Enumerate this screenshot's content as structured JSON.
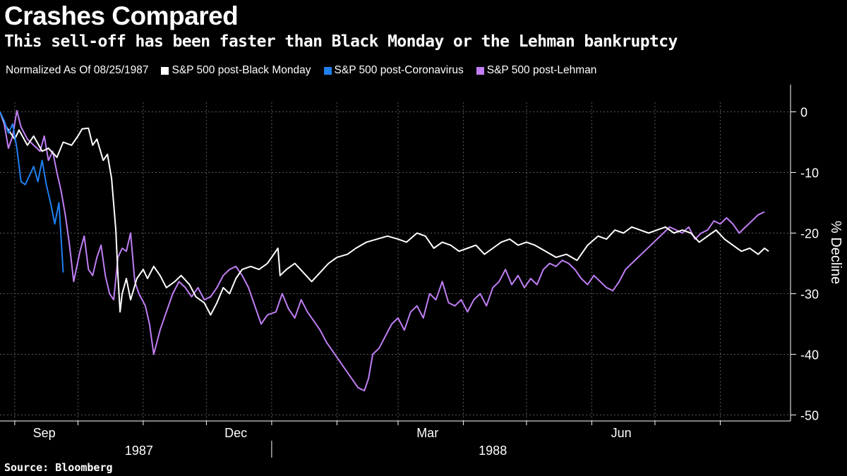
{
  "title": "Crashes Compared",
  "subtitle": "This sell-off has been faster than Black Monday or the Lehman bankruptcy",
  "legend": {
    "note": "Normalized As Of 08/25/1987",
    "items": [
      {
        "label": "S&P 500 post-Black Monday",
        "color": "#ffffff"
      },
      {
        "label": "S&P 500 post-Coronavirus",
        "color": "#1f7ff0"
      },
      {
        "label": "S&P 500 post-Lehman",
        "color": "#c07ef4"
      }
    ]
  },
  "source": "Source: Bloomberg",
  "chart_data": {
    "type": "line",
    "ylabel": "% Decline",
    "ylim": [
      -51,
      1
    ],
    "y_ticks": [
      0,
      -10,
      -20,
      -30,
      -40,
      -50
    ],
    "x_range": [
      "1987-08-25",
      "1988-08-27"
    ],
    "x_month_labels": [
      {
        "label": "Sep",
        "date": "1987-09-15"
      },
      {
        "label": "Dec",
        "date": "1987-12-15"
      },
      {
        "label": "Mar",
        "date": "1988-03-15"
      },
      {
        "label": "Jun",
        "date": "1988-06-15"
      }
    ],
    "x_year_labels": [
      {
        "label": "1987",
        "date": "1987-10-30"
      },
      {
        "label": "1988",
        "date": "1988-04-15"
      }
    ],
    "year_divider": "1988-01-01",
    "grid": true,
    "legend_position": "top-left",
    "series": [
      {
        "name": "S&P 500 post-Black Monday",
        "color": "#ffffff",
        "points": [
          [
            "1987-08-25",
            0
          ],
          [
            "1987-08-28",
            -2.5
          ],
          [
            "1987-09-01",
            -4.5
          ],
          [
            "1987-09-03",
            -3.0
          ],
          [
            "1987-09-07",
            -5.5
          ],
          [
            "1987-09-10",
            -4.0
          ],
          [
            "1987-09-14",
            -6.5
          ],
          [
            "1987-09-17",
            -6.0
          ],
          [
            "1987-09-21",
            -7.5
          ],
          [
            "1987-09-24",
            -5.0
          ],
          [
            "1987-09-28",
            -5.5
          ],
          [
            "1987-10-01",
            -4.0
          ],
          [
            "1987-10-03",
            -2.8
          ],
          [
            "1987-10-06",
            -2.7
          ],
          [
            "1987-10-08",
            -5.5
          ],
          [
            "1987-10-10",
            -4.5
          ],
          [
            "1987-10-13",
            -8.0
          ],
          [
            "1987-10-15",
            -7.0
          ],
          [
            "1987-10-17",
            -11.0
          ],
          [
            "1987-10-19",
            -19.5
          ],
          [
            "1987-10-20",
            -27.0
          ],
          [
            "1987-10-21",
            -33.0
          ],
          [
            "1987-10-22",
            -30.0
          ],
          [
            "1987-10-24",
            -27.5
          ],
          [
            "1987-10-26",
            -31.0
          ],
          [
            "1987-10-29",
            -27.5
          ],
          [
            "1987-11-01",
            -26.0
          ],
          [
            "1987-11-03",
            -27.5
          ],
          [
            "1987-11-06",
            -25.5
          ],
          [
            "1987-11-09",
            -27.0
          ],
          [
            "1987-11-12",
            -29.0
          ],
          [
            "1987-11-16",
            -28.0
          ],
          [
            "1987-11-19",
            -27.0
          ],
          [
            "1987-11-23",
            -28.5
          ],
          [
            "1987-11-26",
            -30.5
          ],
          [
            "1987-11-30",
            -31.5
          ],
          [
            "1987-12-03",
            -33.5
          ],
          [
            "1987-12-06",
            -31.5
          ],
          [
            "1987-12-09",
            -29.0
          ],
          [
            "1987-12-12",
            -30.0
          ],
          [
            "1987-12-15",
            -27.5
          ],
          [
            "1987-12-18",
            -26.0
          ],
          [
            "1987-12-22",
            -25.5
          ],
          [
            "1987-12-26",
            -26.0
          ],
          [
            "1987-12-30",
            -25.0
          ],
          [
            "1988-01-04",
            -22.5
          ],
          [
            "1988-01-05",
            -27.0
          ],
          [
            "1988-01-08",
            -26.0
          ],
          [
            "1988-01-12",
            -25.0
          ],
          [
            "1988-01-16",
            -26.5
          ],
          [
            "1988-01-20",
            -28.0
          ],
          [
            "1988-01-24",
            -26.5
          ],
          [
            "1988-01-28",
            -25.0
          ],
          [
            "1988-02-01",
            -24.0
          ],
          [
            "1988-02-06",
            -23.5
          ],
          [
            "1988-02-10",
            -22.5
          ],
          [
            "1988-02-15",
            -21.5
          ],
          [
            "1988-02-20",
            -21.0
          ],
          [
            "1988-02-25",
            -20.5
          ],
          [
            "1988-03-01",
            -21.0
          ],
          [
            "1988-03-05",
            -21.5
          ],
          [
            "1988-03-10",
            -20.0
          ],
          [
            "1988-03-14",
            -20.5
          ],
          [
            "1988-03-18",
            -22.5
          ],
          [
            "1988-03-22",
            -21.5
          ],
          [
            "1988-03-26",
            -22.0
          ],
          [
            "1988-03-30",
            -23.0
          ],
          [
            "1988-04-03",
            -22.5
          ],
          [
            "1988-04-07",
            -22.0
          ],
          [
            "1988-04-11",
            -23.5
          ],
          [
            "1988-04-15",
            -22.5
          ],
          [
            "1988-04-19",
            -21.5
          ],
          [
            "1988-04-23",
            -21.0
          ],
          [
            "1988-04-27",
            -22.0
          ],
          [
            "1988-05-01",
            -21.5
          ],
          [
            "1988-05-05",
            -22.0
          ],
          [
            "1988-05-10",
            -23.0
          ],
          [
            "1988-05-15",
            -24.0
          ],
          [
            "1988-05-20",
            -23.5
          ],
          [
            "1988-05-25",
            -24.5
          ],
          [
            "1988-05-30",
            -22.0
          ],
          [
            "1988-06-04",
            -20.5
          ],
          [
            "1988-06-08",
            -21.0
          ],
          [
            "1988-06-12",
            -19.5
          ],
          [
            "1988-06-16",
            -20.0
          ],
          [
            "1988-06-20",
            -19.0
          ],
          [
            "1988-06-24",
            -19.5
          ],
          [
            "1988-06-28",
            -20.0
          ],
          [
            "1988-07-02",
            -19.5
          ],
          [
            "1988-07-06",
            -19.0
          ],
          [
            "1988-07-10",
            -20.0
          ],
          [
            "1988-07-14",
            -19.5
          ],
          [
            "1988-07-18",
            -20.0
          ],
          [
            "1988-07-22",
            -21.5
          ],
          [
            "1988-07-26",
            -20.5
          ],
          [
            "1988-07-30",
            -19.5
          ],
          [
            "1988-08-03",
            -21.0
          ],
          [
            "1988-08-07",
            -22.0
          ],
          [
            "1988-08-11",
            -23.0
          ],
          [
            "1988-08-15",
            -22.5
          ],
          [
            "1988-08-19",
            -23.5
          ],
          [
            "1988-08-22",
            -22.5
          ],
          [
            "1988-08-24",
            -23.0
          ]
        ]
      },
      {
        "name": "S&P 500 post-Coronavirus",
        "color": "#1f7ff0",
        "points": [
          [
            "1987-08-25",
            0
          ],
          [
            "1987-08-27",
            -1.5
          ],
          [
            "1987-08-29",
            -3.5
          ],
          [
            "1987-08-31",
            -2.0
          ],
          [
            "1987-09-02",
            -6.0
          ],
          [
            "1987-09-04",
            -11.5
          ],
          [
            "1987-09-06",
            -12.0
          ],
          [
            "1987-09-08",
            -10.5
          ],
          [
            "1987-09-10",
            -9.0
          ],
          [
            "1987-09-12",
            -11.5
          ],
          [
            "1987-09-14",
            -8.0
          ],
          [
            "1987-09-16",
            -12.0
          ],
          [
            "1987-09-18",
            -15.0
          ],
          [
            "1987-09-20",
            -18.5
          ],
          [
            "1987-09-22",
            -15.0
          ],
          [
            "1987-09-24",
            -26.5
          ]
        ]
      },
      {
        "name": "S&P 500 post-Lehman",
        "color": "#c07ef4",
        "points": [
          [
            "1987-08-25",
            0
          ],
          [
            "1987-08-27",
            -2.0
          ],
          [
            "1987-08-29",
            -6.0
          ],
          [
            "1987-08-31",
            -4.0
          ],
          [
            "1987-09-02",
            0.2
          ],
          [
            "1987-09-04",
            -2.5
          ],
          [
            "1987-09-07",
            -4.5
          ],
          [
            "1987-09-10",
            -5.5
          ],
          [
            "1987-09-13",
            -6.5
          ],
          [
            "1987-09-15",
            -4.0
          ],
          [
            "1987-09-17",
            -8.0
          ],
          [
            "1987-09-19",
            -6.5
          ],
          [
            "1987-09-21",
            -10.0
          ],
          [
            "1987-09-23",
            -13.0
          ],
          [
            "1987-09-25",
            -17.0
          ],
          [
            "1987-09-27",
            -22.0
          ],
          [
            "1987-09-29",
            -28.0
          ],
          [
            "1987-10-02",
            -23.0
          ],
          [
            "1987-10-04",
            -20.5
          ],
          [
            "1987-10-06",
            -26.0
          ],
          [
            "1987-10-08",
            -27.0
          ],
          [
            "1987-10-10",
            -24.0
          ],
          [
            "1987-10-12",
            -22.0
          ],
          [
            "1987-10-14",
            -27.0
          ],
          [
            "1987-10-16",
            -30.0
          ],
          [
            "1987-10-18",
            -31.0
          ],
          [
            "1987-10-20",
            -24.0
          ],
          [
            "1987-10-22",
            -22.5
          ],
          [
            "1987-10-24",
            -23.0
          ],
          [
            "1987-10-26",
            -20.0
          ],
          [
            "1987-10-28",
            -28.0
          ],
          [
            "1987-10-30",
            -30.0
          ],
          [
            "1987-11-02",
            -32.0
          ],
          [
            "1987-11-04",
            -35.0
          ],
          [
            "1987-11-06",
            -40.0
          ],
          [
            "1987-11-09",
            -36.0
          ],
          [
            "1987-11-12",
            -33.0
          ],
          [
            "1987-11-15",
            -30.0
          ],
          [
            "1987-11-18",
            -28.0
          ],
          [
            "1987-11-21",
            -29.0
          ],
          [
            "1987-11-24",
            -30.5
          ],
          [
            "1987-11-27",
            -29.0
          ],
          [
            "1987-11-30",
            -31.0
          ],
          [
            "1987-12-03",
            -30.5
          ],
          [
            "1987-12-06",
            -29.0
          ],
          [
            "1987-12-09",
            -27.0
          ],
          [
            "1987-12-12",
            -26.0
          ],
          [
            "1987-12-15",
            -25.5
          ],
          [
            "1987-12-18",
            -27.0
          ],
          [
            "1987-12-21",
            -29.0
          ],
          [
            "1987-12-24",
            -32.0
          ],
          [
            "1987-12-27",
            -35.0
          ],
          [
            "1987-12-30",
            -33.5
          ],
          [
            "1988-01-03",
            -33.0
          ],
          [
            "1988-01-06",
            -30.0
          ],
          [
            "1988-01-09",
            -32.5
          ],
          [
            "1988-01-12",
            -34.0
          ],
          [
            "1988-01-15",
            -31.0
          ],
          [
            "1988-01-18",
            -33.0
          ],
          [
            "1988-01-21",
            -34.5
          ],
          [
            "1988-01-24",
            -36.0
          ],
          [
            "1988-01-27",
            -38.0
          ],
          [
            "1988-01-30",
            -39.5
          ],
          [
            "1988-02-02",
            -41.0
          ],
          [
            "1988-02-05",
            -42.5
          ],
          [
            "1988-02-08",
            -44.0
          ],
          [
            "1988-02-11",
            -45.5
          ],
          [
            "1988-02-14",
            -46.0
          ],
          [
            "1988-02-16",
            -44.0
          ],
          [
            "1988-02-18",
            -40.0
          ],
          [
            "1988-02-21",
            -39.0
          ],
          [
            "1988-02-24",
            -37.0
          ],
          [
            "1988-02-27",
            -35.0
          ],
          [
            "1988-03-01",
            -34.0
          ],
          [
            "1988-03-04",
            -36.0
          ],
          [
            "1988-03-07",
            -33.0
          ],
          [
            "1988-03-10",
            -32.0
          ],
          [
            "1988-03-13",
            -34.0
          ],
          [
            "1988-03-16",
            -30.0
          ],
          [
            "1988-03-19",
            -31.0
          ],
          [
            "1988-03-22",
            -28.0
          ],
          [
            "1988-03-25",
            -31.5
          ],
          [
            "1988-03-28",
            -32.0
          ],
          [
            "1988-03-31",
            -31.0
          ],
          [
            "1988-04-03",
            -33.0
          ],
          [
            "1988-04-06",
            -31.0
          ],
          [
            "1988-04-09",
            -30.0
          ],
          [
            "1988-04-12",
            -32.0
          ],
          [
            "1988-04-15",
            -29.0
          ],
          [
            "1988-04-18",
            -28.0
          ],
          [
            "1988-04-21",
            -26.0
          ],
          [
            "1988-04-24",
            -28.5
          ],
          [
            "1988-04-27",
            -27.0
          ],
          [
            "1988-04-30",
            -29.0
          ],
          [
            "1988-05-03",
            -27.5
          ],
          [
            "1988-05-06",
            -28.5
          ],
          [
            "1988-05-09",
            -26.0
          ],
          [
            "1988-05-12",
            -25.0
          ],
          [
            "1988-05-15",
            -25.5
          ],
          [
            "1988-05-18",
            -24.5
          ],
          [
            "1988-05-21",
            -25.0
          ],
          [
            "1988-05-24",
            -26.0
          ],
          [
            "1988-05-27",
            -27.5
          ],
          [
            "1988-05-30",
            -28.5
          ],
          [
            "1988-06-02",
            -27.0
          ],
          [
            "1988-06-05",
            -28.0
          ],
          [
            "1988-06-08",
            -29.0
          ],
          [
            "1988-06-11",
            -29.5
          ],
          [
            "1988-06-14",
            -28.0
          ],
          [
            "1988-06-17",
            -26.0
          ],
          [
            "1988-06-20",
            -25.0
          ],
          [
            "1988-06-23",
            -24.0
          ],
          [
            "1988-06-26",
            -23.0
          ],
          [
            "1988-06-29",
            -22.0
          ],
          [
            "1988-07-02",
            -21.0
          ],
          [
            "1988-07-05",
            -20.0
          ],
          [
            "1988-07-08",
            -19.0
          ],
          [
            "1988-07-11",
            -19.5
          ],
          [
            "1988-07-14",
            -20.0
          ],
          [
            "1988-07-17",
            -19.0
          ],
          [
            "1988-07-20",
            -21.0
          ],
          [
            "1988-07-23",
            -20.0
          ],
          [
            "1988-07-26",
            -19.5
          ],
          [
            "1988-07-29",
            -18.0
          ],
          [
            "1988-08-01",
            -18.5
          ],
          [
            "1988-08-04",
            -17.5
          ],
          [
            "1988-08-07",
            -18.5
          ],
          [
            "1988-08-10",
            -20.0
          ],
          [
            "1988-08-13",
            -19.0
          ],
          [
            "1988-08-16",
            -18.0
          ],
          [
            "1988-08-19",
            -17.0
          ],
          [
            "1988-08-22",
            -16.5
          ]
        ]
      }
    ]
  }
}
